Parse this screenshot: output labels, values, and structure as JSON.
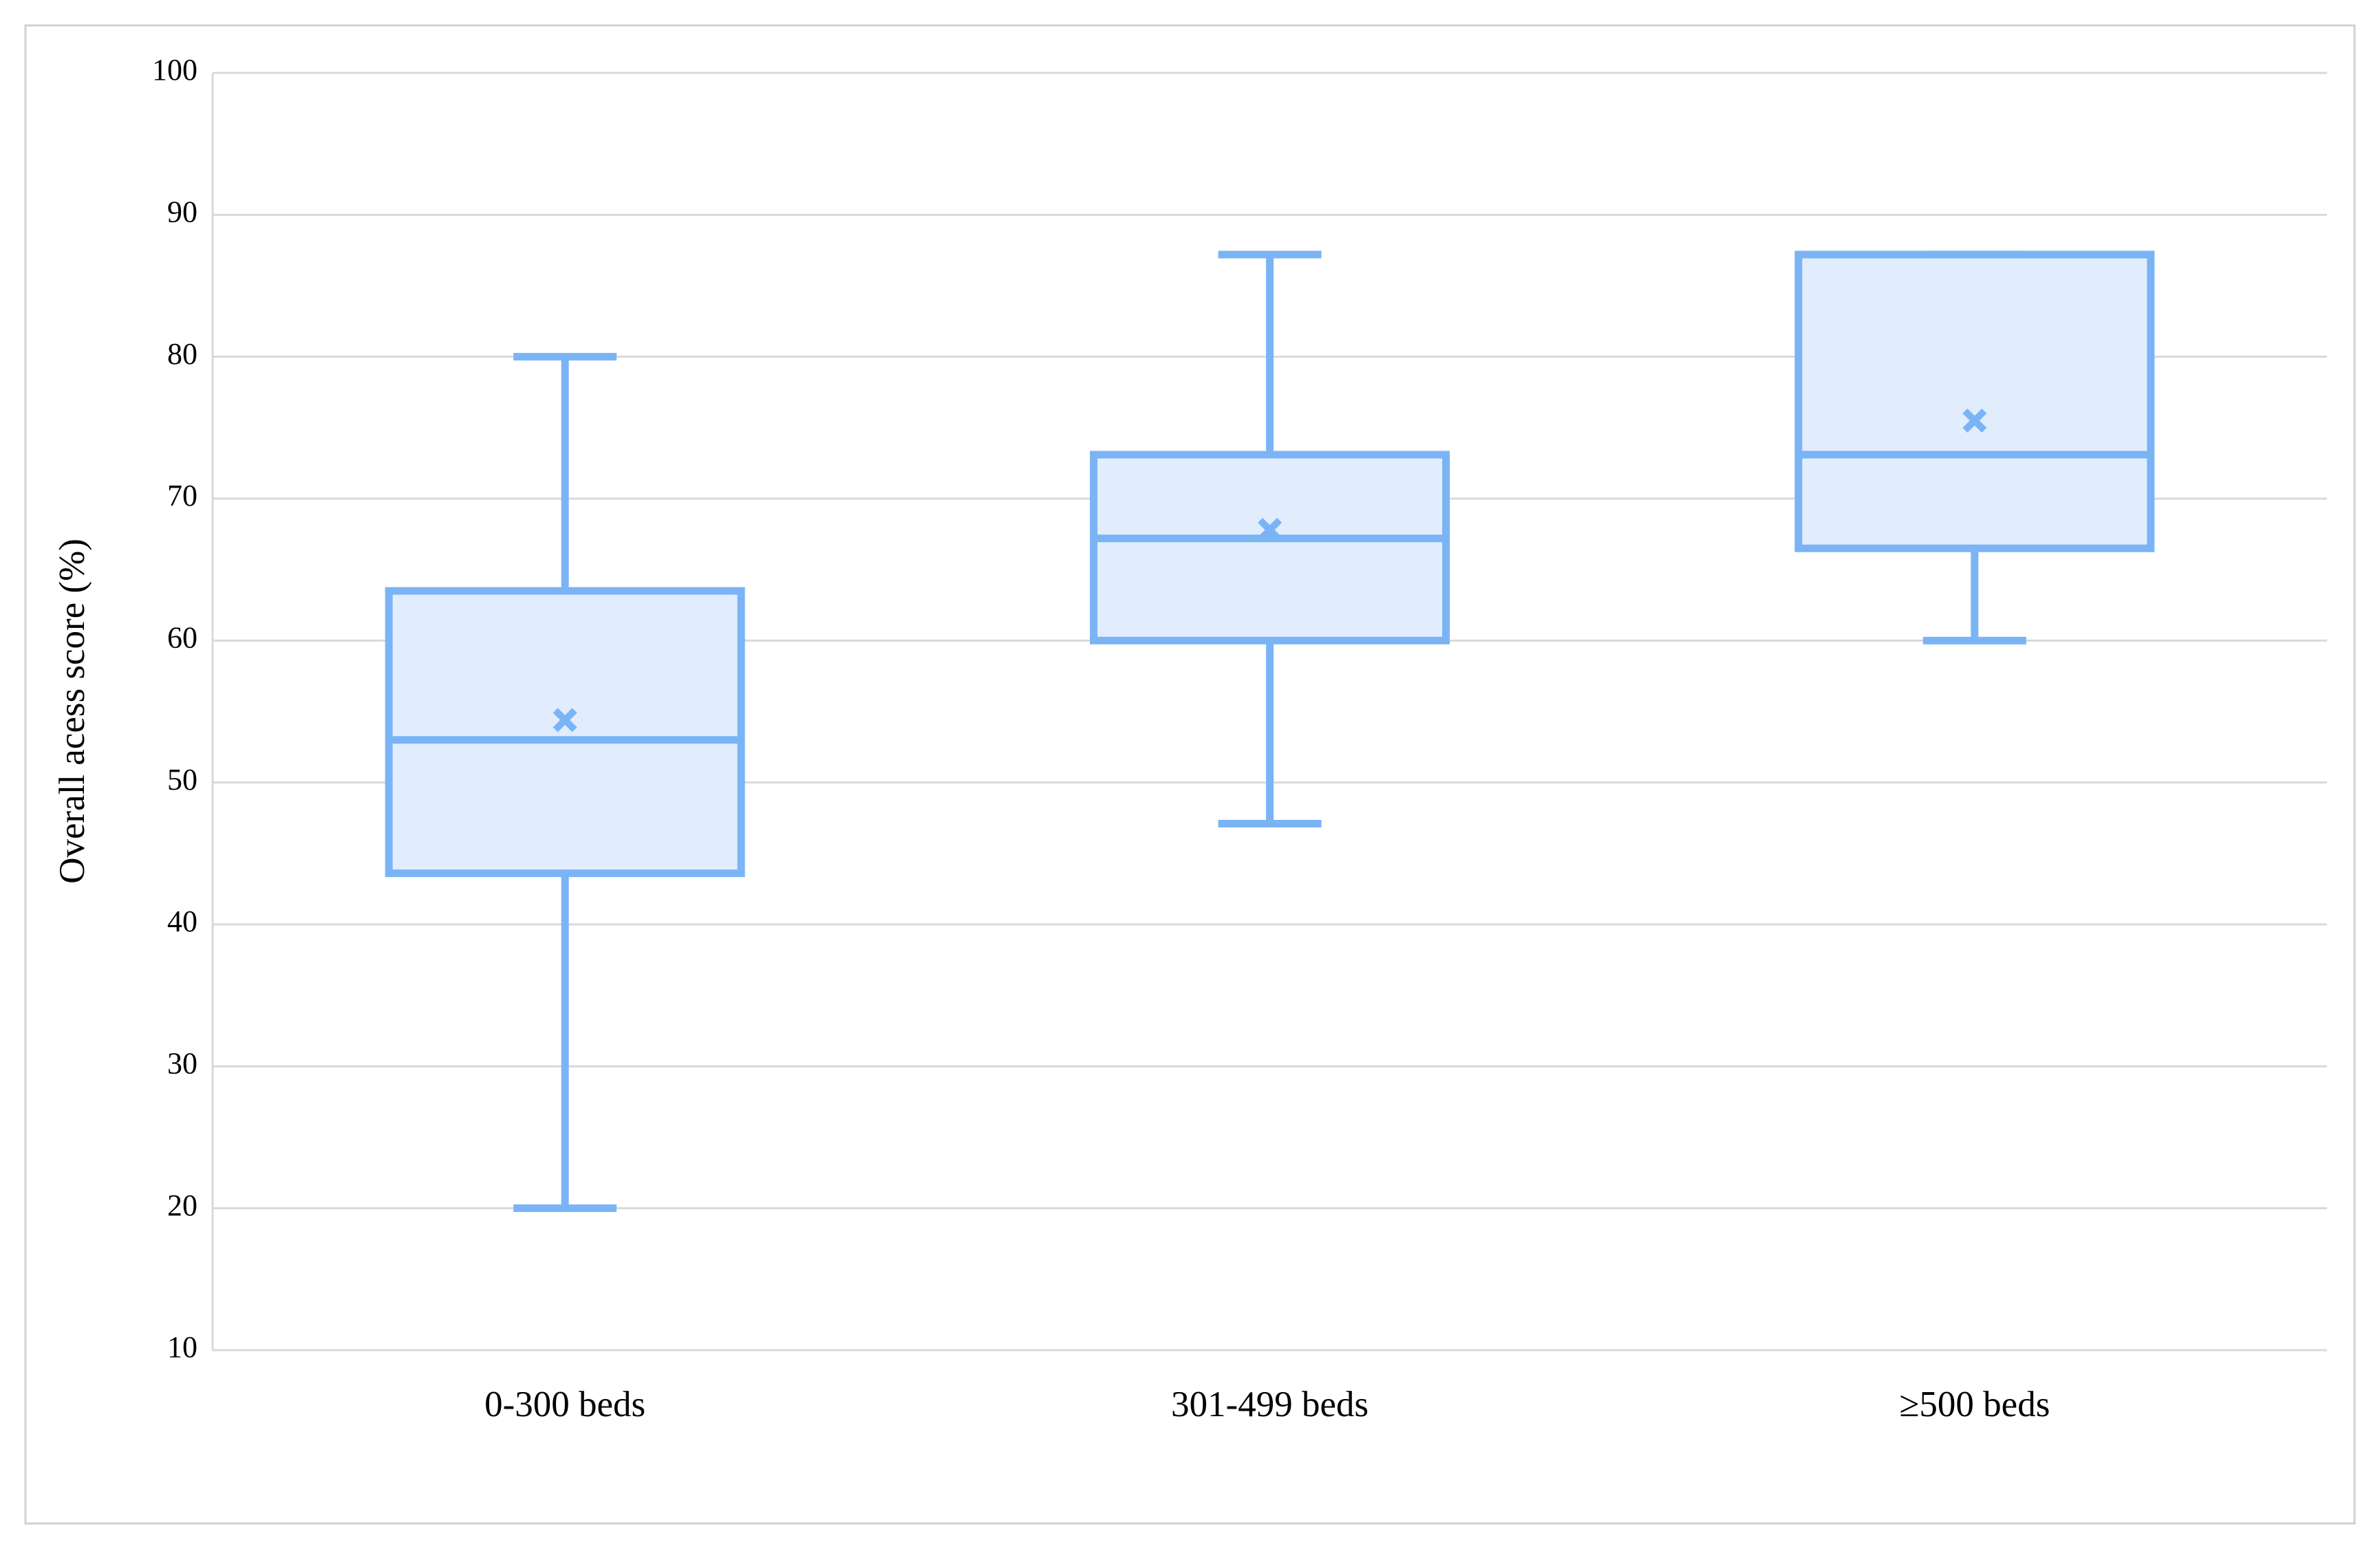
{
  "chart_data": {
    "type": "box",
    "y_label": "Overall acess score (%)",
    "categories": [
      "0-300 beds",
      "301-499 beds",
      "≥500 beds"
    ],
    "min": [
      20,
      47.1,
      60
    ],
    "q1": [
      43.6,
      60,
      66.5
    ],
    "median": [
      53,
      67.2,
      73.1
    ],
    "q3": [
      63.5,
      73.1,
      87.2
    ],
    "max": [
      80,
      87.2,
      87.2
    ],
    "mean": [
      54.4,
      67.8,
      75.5
    ],
    "color": "#7ab4f5",
    "fill": "#e1edfd",
    "ylim": [
      10,
      100
    ],
    "yticks": [
      10,
      20,
      30,
      40,
      50,
      60,
      70,
      80,
      90,
      100
    ],
    "grid": true
  }
}
